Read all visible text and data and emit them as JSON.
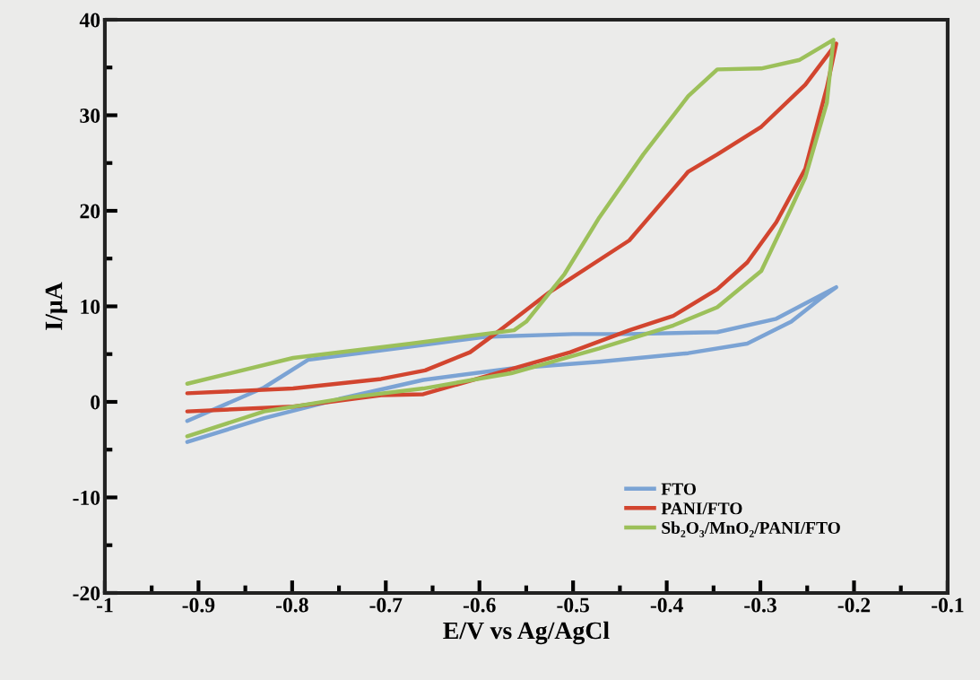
{
  "chart_data": {
    "type": "line",
    "xlabel": "E/V vs Ag/AgCl",
    "ylabel": "I/μA",
    "xlim": [
      -1,
      -0.1
    ],
    "xticks": [
      -1,
      -0.9,
      -0.8,
      -0.7,
      -0.6,
      -0.5,
      -0.4,
      -0.3,
      -0.2,
      -0.1
    ],
    "ylim": [
      -20,
      40
    ],
    "yticks": [
      -20,
      -10,
      0,
      10,
      20,
      30,
      40
    ],
    "grid": false,
    "legend": "bottom right",
    "marker": "none",
    "line_style": "solid",
    "series": [
      {
        "name": "FTO",
        "color": "#7ba3d4",
        "x": [
          -0.912,
          -0.83,
          -0.783,
          -0.673,
          -0.594,
          -0.5,
          -0.44,
          -0.346,
          -0.283,
          -0.252,
          -0.219,
          -0.236,
          -0.267,
          -0.314,
          -0.377,
          -0.472,
          -0.566,
          -0.66,
          -0.75,
          -0.83,
          -0.912
        ],
        "values": [
          -2.0,
          1.5,
          4.4,
          5.8,
          6.8,
          7.1,
          7.1,
          7.3,
          8.7,
          10.3,
          12.0,
          10.8,
          8.4,
          6.1,
          5.1,
          4.2,
          3.5,
          2.3,
          0.3,
          -1.7,
          -4.2
        ]
      },
      {
        "name": "PANI/FTO",
        "color": "#d2452f",
        "x": [
          -0.912,
          -0.799,
          -0.705,
          -0.658,
          -0.61,
          -0.578,
          -0.525,
          -0.509,
          -0.44,
          -0.377,
          -0.346,
          -0.299,
          -0.252,
          -0.219,
          -0.229,
          -0.252,
          -0.283,
          -0.314,
          -0.346,
          -0.393,
          -0.44,
          -0.503,
          -0.582,
          -0.66,
          -0.705,
          -0.799,
          -0.912
        ],
        "values": [
          0.9,
          1.4,
          2.4,
          3.3,
          5.2,
          7.5,
          11.5,
          12.5,
          16.9,
          24.1,
          25.9,
          28.8,
          33.2,
          37.5,
          32.9,
          24.4,
          18.8,
          14.6,
          11.8,
          9.0,
          7.5,
          5.2,
          3.0,
          0.8,
          0.7,
          -0.5,
          -1.0
        ]
      },
      {
        "name": "Sb₂O₃/MnO₂/PANI/FTO",
        "color": "#9cc05a",
        "x": [
          -0.912,
          -0.799,
          -0.673,
          -0.563,
          -0.55,
          -0.509,
          -0.472,
          -0.425,
          -0.377,
          -0.346,
          -0.299,
          -0.258,
          -0.222,
          -0.229,
          -0.252,
          -0.267,
          -0.299,
          -0.346,
          -0.393,
          -0.472,
          -0.566,
          -0.66,
          -0.736,
          -0.83,
          -0.912
        ],
        "values": [
          1.9,
          4.6,
          6.1,
          7.5,
          8.4,
          13.4,
          19.3,
          25.9,
          32.0,
          34.8,
          34.9,
          35.8,
          37.9,
          31.3,
          23.5,
          20.3,
          13.7,
          9.9,
          8.0,
          5.6,
          3.0,
          1.4,
          0.5,
          -1.0,
          -3.6
        ]
      }
    ]
  }
}
